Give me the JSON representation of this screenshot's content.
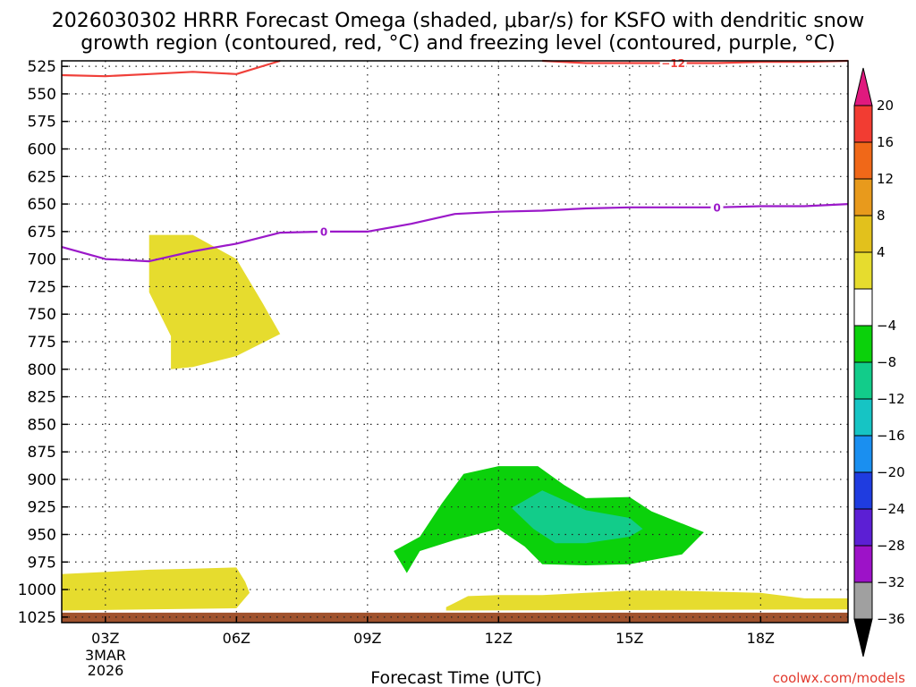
{
  "title_line1": "2026030302 HRRR Forecast Omega (shaded, μbar/s) for KSFO with dendritic snow",
  "title_line2": "growth region (contoured, red, °C) and freezing level (contoured, purple, °C)",
  "credit": "coolwx.com/models",
  "chart_data": {
    "type": "time-height cross section",
    "title": "2026030302 HRRR Forecast Omega (shaded, μbar/s) for KSFO with dendritic snow growth region (contoured, red, °C) and freezing level (contoured, purple, °C)",
    "xlabel": "Forecast Time (UTC)",
    "x_ticks": [
      "03Z",
      "06Z",
      "09Z",
      "12Z",
      "15Z",
      "18Z"
    ],
    "x_tick_hours": [
      3,
      6,
      9,
      12,
      15,
      18
    ],
    "x_range_hours": [
      2,
      20
    ],
    "date_label": [
      "3MAR",
      "2026"
    ],
    "y_ticks": [
      525,
      550,
      575,
      600,
      625,
      650,
      675,
      700,
      725,
      750,
      775,
      800,
      825,
      850,
      875,
      900,
      925,
      950,
      975,
      1000,
      1025
    ],
    "y_range_hPa": [
      520,
      1030
    ],
    "grid": true,
    "colorbar": {
      "labels": [
        "20",
        "16",
        "12",
        "8",
        "4",
        "−4",
        "−8",
        "−12",
        "−16",
        "−20",
        "−24",
        "−28",
        "−32",
        "−36"
      ],
      "bins": [
        {
          "range": [
            20,
            99
          ],
          "color": "#e0197e"
        },
        {
          "range": [
            16,
            20
          ],
          "color": "#f23c32"
        },
        {
          "range": [
            12,
            16
          ],
          "color": "#f06818"
        },
        {
          "range": [
            8,
            12
          ],
          "color": "#e89a1c"
        },
        {
          "range": [
            4,
            8
          ],
          "color": "#e2c11c"
        },
        {
          "range": [
            0,
            4
          ],
          "color": "#e6dc2e"
        },
        {
          "range": [
            -4,
            0
          ],
          "color": "#ffffff"
        },
        {
          "range": [
            -8,
            -4
          ],
          "color": "#0bd10b"
        },
        {
          "range": [
            -12,
            -8
          ],
          "color": "#12cc8a"
        },
        {
          "range": [
            -16,
            -12
          ],
          "color": "#16c4c4"
        },
        {
          "range": [
            -20,
            -16
          ],
          "color": "#1a8ff0"
        },
        {
          "range": [
            -24,
            -20
          ],
          "color": "#1f3ce0"
        },
        {
          "range": [
            -28,
            -24
          ],
          "color": "#5c1fd4"
        },
        {
          "range": [
            -32,
            -28
          ],
          "color": "#9d12c8"
        },
        {
          "range": [
            -36,
            -32
          ],
          "color": "#a0a0a0"
        },
        {
          "range": [
            -99,
            -36
          ],
          "color": "#000000"
        }
      ]
    },
    "shaded_regions": [
      {
        "name": "omega-positive-upper",
        "color": "#e6dc2e",
        "points": [
          [
            4.0,
            678
          ],
          [
            5.0,
            678
          ],
          [
            6.0,
            700
          ],
          [
            6.6,
            740
          ],
          [
            7.0,
            768
          ],
          [
            6.0,
            788
          ],
          [
            5.0,
            798
          ],
          [
            4.5,
            800
          ],
          [
            4.5,
            770
          ],
          [
            4.0,
            730
          ]
        ]
      },
      {
        "name": "omega-positive-lower-left",
        "color": "#e6dc2e",
        "points": [
          [
            2.0,
            986
          ],
          [
            4.0,
            982
          ],
          [
            5.0,
            981
          ],
          [
            6.0,
            980
          ],
          [
            6.2,
            993
          ],
          [
            6.3,
            1003
          ],
          [
            6.0,
            1017
          ],
          [
            2.0,
            1019
          ]
        ]
      },
      {
        "name": "omega-positive-lower-right",
        "color": "#e6dc2e",
        "points": [
          [
            10.8,
            1016
          ],
          [
            11.3,
            1006
          ],
          [
            12.0,
            1005
          ],
          [
            13.0,
            1005
          ],
          [
            14.0,
            1003
          ],
          [
            15.0,
            1001
          ],
          [
            16.0,
            1001
          ],
          [
            17.0,
            1002
          ],
          [
            18.0,
            1003
          ],
          [
            19.0,
            1008
          ],
          [
            20.0,
            1008
          ],
          [
            20.0,
            1018
          ],
          [
            10.8,
            1019
          ]
        ]
      },
      {
        "name": "omega-negative-outer",
        "color": "#0bd10b",
        "points": [
          [
            9.6,
            965
          ],
          [
            10.2,
            952
          ],
          [
            10.7,
            922
          ],
          [
            11.2,
            895
          ],
          [
            12.0,
            888
          ],
          [
            12.9,
            888
          ],
          [
            13.5,
            905
          ],
          [
            14.0,
            917
          ],
          [
            15.0,
            916
          ],
          [
            15.5,
            929
          ],
          [
            16.7,
            948
          ],
          [
            16.2,
            968
          ],
          [
            15.0,
            977
          ],
          [
            14.0,
            978
          ],
          [
            13.0,
            977
          ],
          [
            12.6,
            961
          ],
          [
            12.0,
            945
          ],
          [
            11.0,
            955
          ],
          [
            10.2,
            965
          ],
          [
            9.9,
            985
          ]
        ]
      },
      {
        "name": "omega-negative-inner",
        "color": "#12cc8a",
        "points": [
          [
            12.3,
            926
          ],
          [
            13.0,
            910
          ],
          [
            14.0,
            928
          ],
          [
            15.0,
            935
          ],
          [
            15.3,
            945
          ],
          [
            15.0,
            952
          ],
          [
            14.0,
            958
          ],
          [
            13.3,
            958
          ],
          [
            12.8,
            945
          ]
        ]
      },
      {
        "name": "surface",
        "color": "#a0522d",
        "points": [
          [
            2.0,
            1021
          ],
          [
            20.0,
            1021
          ],
          [
            20.0,
            1030
          ],
          [
            2.0,
            1030
          ]
        ]
      }
    ],
    "series": [
      {
        "name": "−12",
        "color": "#f0403a",
        "x": [
          2.0,
          3.0,
          4.0,
          5.0,
          6.0,
          7.0
        ],
        "y": [
          533,
          534,
          532,
          530,
          532,
          520
        ]
      },
      {
        "name": "−12",
        "color": "#f0403a",
        "x": [
          13.0,
          14.0,
          15.0,
          16.0,
          17.0,
          18.0,
          19.0,
          20.0
        ],
        "y": [
          520,
          522,
          522,
          522,
          522,
          521,
          521,
          520
        ]
      },
      {
        "name": "0",
        "color": "#9b19c9",
        "x": [
          2.0,
          3.0,
          4.0,
          5.0,
          6.0,
          7.0,
          8.0,
          9.0,
          10.0,
          11.0,
          12.0,
          13.0,
          14.0,
          15.0,
          16.0,
          17.0,
          18.0,
          19.0,
          20.0
        ],
        "y": [
          689,
          700,
          702,
          693,
          686,
          676,
          675,
          675,
          668,
          659,
          657,
          656,
          654,
          653,
          653,
          653,
          652,
          652,
          650
        ]
      }
    ],
    "annotations": [
      {
        "text": "−12",
        "x": 16.0,
        "y": 522,
        "color": "#f0403a"
      },
      {
        "text": "0",
        "x": 8.0,
        "y": 675,
        "color": "#9b19c9"
      },
      {
        "text": "0",
        "x": 17.0,
        "y": 653,
        "color": "#9b19c9"
      }
    ]
  }
}
